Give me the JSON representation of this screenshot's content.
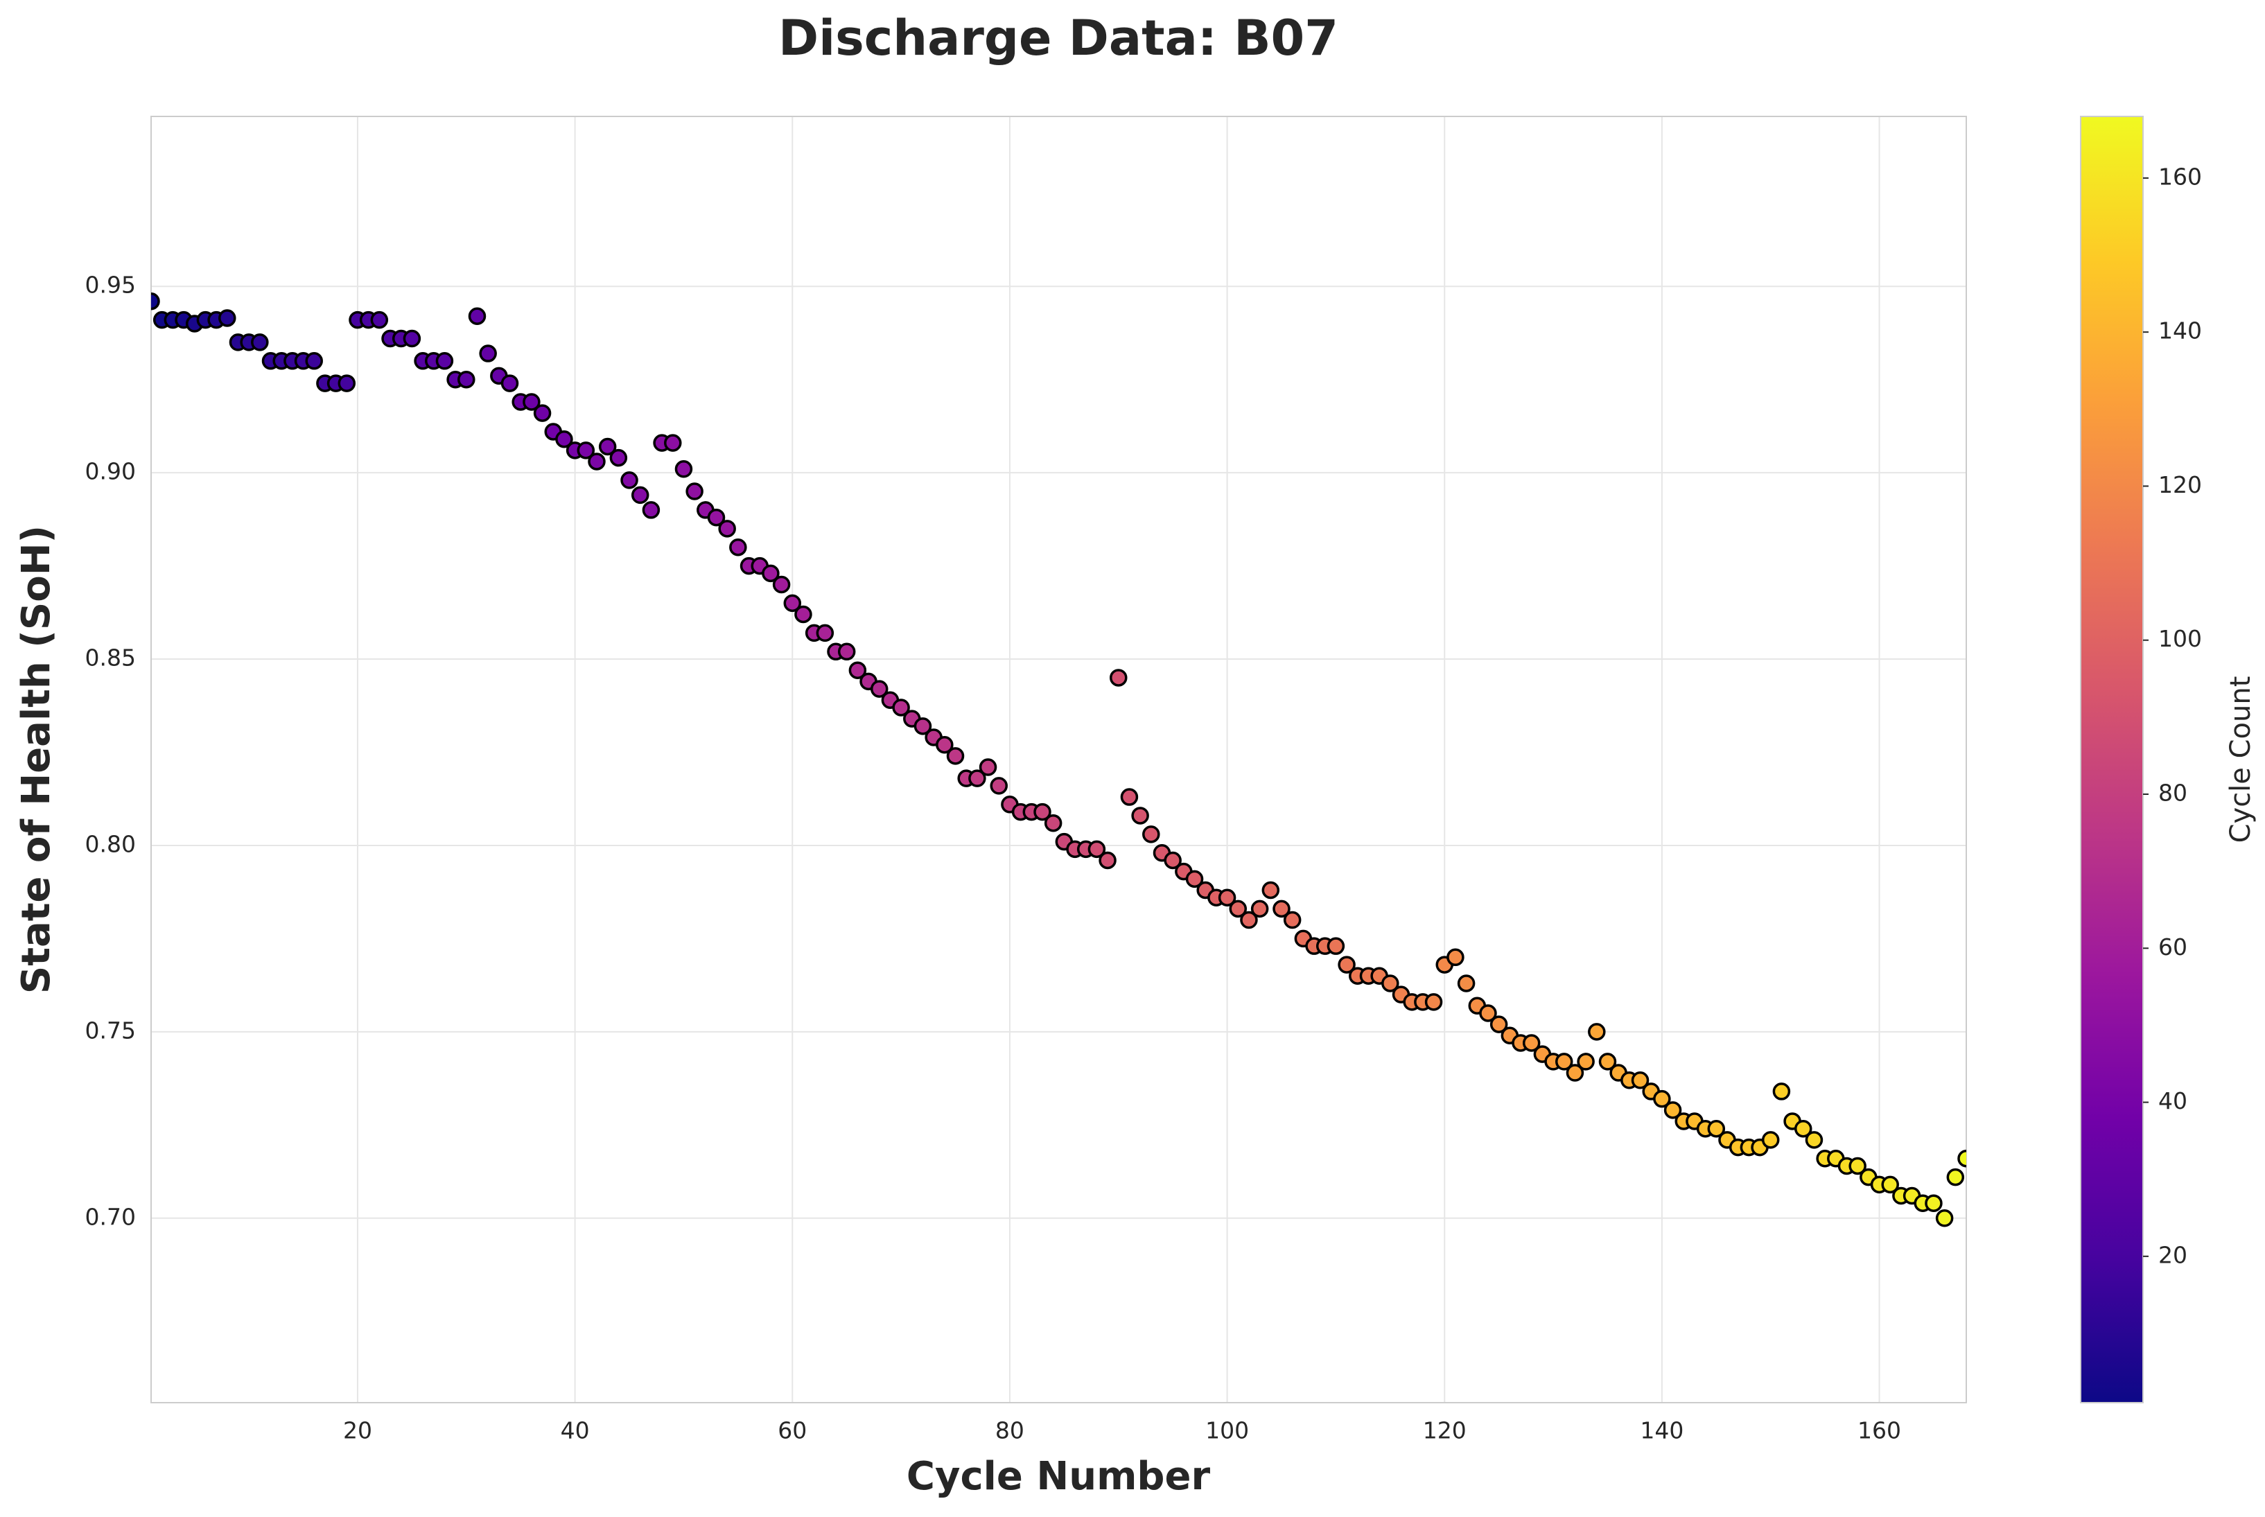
{
  "chart_data": {
    "type": "scatter",
    "title": "Discharge Data: B07",
    "x_label": "Cycle Number",
    "y_label": "State of Health (SoH)",
    "x": [
      1,
      2,
      3,
      4,
      5,
      6,
      7,
      8,
      9,
      10,
      11,
      12,
      13,
      14,
      15,
      16,
      17,
      18,
      19,
      20,
      21,
      22,
      23,
      24,
      25,
      26,
      27,
      28,
      29,
      30,
      31,
      32,
      33,
      34,
      35,
      36,
      37,
      38,
      39,
      40,
      41,
      42,
      43,
      44,
      45,
      46,
      47,
      48,
      49,
      50,
      51,
      52,
      53,
      54,
      55,
      56,
      57,
      58,
      59,
      60,
      61,
      62,
      63,
      64,
      65,
      66,
      67,
      68,
      69,
      70,
      71,
      72,
      73,
      74,
      75,
      76,
      77,
      78,
      79,
      80,
      81,
      82,
      83,
      84,
      85,
      86,
      87,
      88,
      89,
      90,
      91,
      92,
      93,
      94,
      95,
      96,
      97,
      98,
      99,
      100,
      101,
      102,
      103,
      104,
      105,
      106,
      107,
      108,
      109,
      110,
      111,
      112,
      113,
      114,
      115,
      116,
      117,
      118,
      119,
      120,
      121,
      122,
      123,
      124,
      125,
      126,
      127,
      128,
      129,
      130,
      131,
      132,
      133,
      134,
      135,
      136,
      137,
      138,
      139,
      140,
      141,
      142,
      143,
      144,
      145,
      146,
      147,
      148,
      149,
      150,
      151,
      152,
      153,
      154,
      155,
      156,
      157,
      158,
      159,
      160,
      161,
      162,
      163,
      164,
      165,
      166,
      167,
      168
    ],
    "values": [
      0.946,
      0.941,
      0.941,
      0.941,
      0.94,
      0.941,
      0.941,
      0.9415,
      0.935,
      0.935,
      0.935,
      0.93,
      0.93,
      0.93,
      0.93,
      0.93,
      0.924,
      0.924,
      0.924,
      0.941,
      0.941,
      0.941,
      0.936,
      0.936,
      0.936,
      0.93,
      0.93,
      0.93,
      0.925,
      0.925,
      0.942,
      0.932,
      0.926,
      0.924,
      0.919,
      0.919,
      0.916,
      0.911,
      0.909,
      0.906,
      0.906,
      0.903,
      0.907,
      0.904,
      0.898,
      0.894,
      0.89,
      0.908,
      0.908,
      0.901,
      0.895,
      0.89,
      0.888,
      0.885,
      0.88,
      0.875,
      0.875,
      0.873,
      0.87,
      0.865,
      0.862,
      0.857,
      0.857,
      0.852,
      0.852,
      0.847,
      0.844,
      0.842,
      0.839,
      0.837,
      0.834,
      0.832,
      0.829,
      0.827,
      0.824,
      0.818,
      0.818,
      0.821,
      0.816,
      0.811,
      0.809,
      0.809,
      0.809,
      0.806,
      0.801,
      0.799,
      0.799,
      0.799,
      0.796,
      0.845,
      0.813,
      0.808,
      0.803,
      0.798,
      0.796,
      0.793,
      0.791,
      0.788,
      0.786,
      0.786,
      0.783,
      0.78,
      0.783,
      0.788,
      0.783,
      0.78,
      0.775,
      0.773,
      0.773,
      0.773,
      0.768,
      0.765,
      0.765,
      0.765,
      0.763,
      0.76,
      0.758,
      0.758,
      0.758,
      0.768,
      0.77,
      0.763,
      0.757,
      0.755,
      0.752,
      0.749,
      0.747,
      0.747,
      0.744,
      0.742,
      0.742,
      0.739,
      0.742,
      0.75,
      0.742,
      0.739,
      0.737,
      0.737,
      0.734,
      0.732,
      0.729,
      0.726,
      0.726,
      0.724,
      0.724,
      0.721,
      0.719,
      0.719,
      0.719,
      0.721,
      0.734,
      0.726,
      0.724,
      0.721,
      0.716,
      0.716,
      0.714,
      0.714,
      0.711,
      0.709,
      0.709,
      0.706,
      0.706,
      0.704,
      0.704,
      0.7,
      0.711,
      0.716
    ],
    "xlim": [
      1,
      168
    ],
    "ylim": [
      0.6505,
      0.9956
    ],
    "xticks": [
      20,
      40,
      60,
      80,
      100,
      120,
      140,
      160
    ],
    "yticks": [
      {
        "value": 0.7,
        "label": "0.70"
      },
      0.75,
      {
        "value": 0.8,
        "label": "0.80"
      },
      0.85,
      {
        "value": 0.9,
        "label": "0.90"
      },
      0.95
    ],
    "grid": true,
    "colorbar_label": "Cycle Count",
    "clim": [
      1,
      168
    ],
    "colorbar_ticks": [
      20,
      40,
      60,
      80,
      100,
      120,
      140,
      160
    ],
    "colormap": [
      "#0d0887",
      "#46039f",
      "#7201a8",
      "#9c179e",
      "#bd3786",
      "#d8576b",
      "#ed7953",
      "#fb9f3a",
      "#fdca26",
      "#f0f921"
    ],
    "edge_color": "#000000"
  }
}
